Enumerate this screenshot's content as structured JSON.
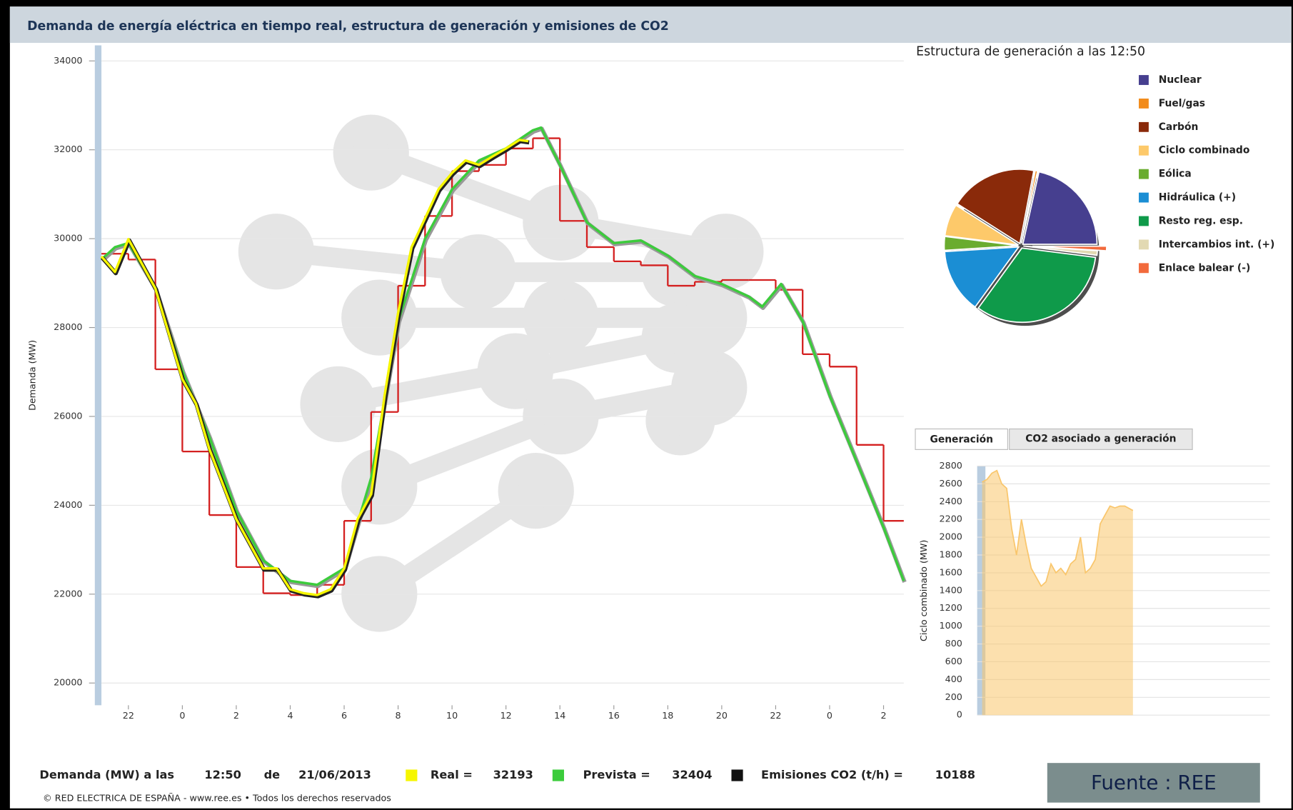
{
  "header": {
    "title": "Demanda de energía eléctrica en tiempo real, estructura de generación y emisiones de CO2"
  },
  "chart_data": [
    {
      "type": "line",
      "ylabel": "Demanda (MW)",
      "xlim": [
        21,
        50.75
      ],
      "ylim": [
        19500,
        34350
      ],
      "yticks": [
        20000,
        22000,
        24000,
        26000,
        28000,
        30000,
        32000,
        34000
      ],
      "xticks": [
        22,
        {
          "value": 24,
          "label": "0"
        },
        {
          "value": 26,
          "label": "2"
        },
        {
          "value": 28,
          "label": "4"
        },
        {
          "value": 30,
          "label": "6"
        },
        {
          "value": 32,
          "label": "8"
        },
        {
          "value": 34,
          "label": "10"
        },
        {
          "value": 36,
          "label": "12"
        },
        {
          "value": 38,
          "label": "14"
        },
        {
          "value": 40,
          "label": "16"
        },
        {
          "value": 42,
          "label": "18"
        },
        {
          "value": 44,
          "label": "20"
        },
        {
          "value": 46,
          "label": "22"
        },
        {
          "value": 48,
          "label": "0"
        },
        {
          "value": 50,
          "label": "2"
        }
      ],
      "series": [
        {
          "name": "Real =",
          "color": "#f6f600",
          "x": [
            21,
            21.5,
            22,
            23,
            24,
            24.5,
            25,
            26,
            27,
            27.5,
            28,
            28.5,
            29,
            29.5,
            30,
            30.5,
            31,
            31.5,
            32,
            32.5,
            33,
            33.5,
            34,
            34.5,
            35,
            35.5,
            36,
            36.5,
            36.83
          ],
          "values": [
            29600,
            29250,
            29990,
            28880,
            26840,
            26290,
            25270,
            23690,
            22580,
            22580,
            22110,
            22020,
            21980,
            22110,
            22580,
            23690,
            24250,
            26470,
            28330,
            29810,
            30460,
            31110,
            31480,
            31760,
            31660,
            31850,
            32030,
            32220,
            32193
          ]
        },
        {
          "name": "Prevista =",
          "color": "#3ccc3c",
          "x": [
            21,
            21.5,
            22,
            23,
            24,
            25,
            26,
            27,
            28,
            29,
            30,
            31,
            32,
            33,
            34,
            35,
            36,
            37,
            37.3,
            38,
            39,
            40,
            41,
            42,
            43,
            44,
            45,
            45.5,
            46.2,
            47,
            48,
            49,
            50,
            50.75
          ],
          "values": [
            29530,
            29810,
            29900,
            28880,
            27030,
            25540,
            23880,
            22760,
            22300,
            22210,
            22580,
            24620,
            28140,
            30000,
            31110,
            31760,
            32030,
            32440,
            32500,
            31660,
            30370,
            29900,
            29960,
            29620,
            29160,
            28980,
            28700,
            28470,
            28980,
            28140,
            26470,
            24990,
            23500,
            22300
          ]
        },
        {
          "color": "#d42020",
          "step": true,
          "x": [
            21,
            22,
            23,
            24,
            25,
            26,
            27,
            28,
            29,
            30,
            31,
            32,
            33,
            34,
            35,
            36,
            37,
            38,
            39,
            40,
            41,
            42,
            43,
            44,
            45,
            46,
            47,
            48,
            49,
            50
          ],
          "values": [
            29660,
            29530,
            27060,
            25210,
            23780,
            22610,
            22020,
            21980,
            22210,
            23650,
            26100,
            28940,
            30510,
            31520,
            31660,
            32030,
            32260,
            30400,
            29810,
            29490,
            29400,
            28940,
            29030,
            29070,
            29070,
            28850,
            27400,
            27120,
            25360,
            23650
          ]
        }
      ]
    },
    {
      "type": "pie",
      "title": "Estructura de generación a las 12:50",
      "categories": [
        "Nuclear",
        "Fuel/gas",
        "Carbón",
        "Ciclo combinado",
        "Eólica",
        "Hidráulica (+)",
        "Resto reg. esp.",
        "Intercambios int. (+)",
        "Enlace balear (-)"
      ],
      "colors": [
        "#463f8f",
        "#f28c1c",
        "#8a2a0a",
        "#fdc96a",
        "#6aac2f",
        "#1b8ed4",
        "#0f9a4a",
        "#e2d9b2",
        "#f26a3c"
      ],
      "values": [
        21.5,
        0.5,
        19,
        7,
        3,
        14,
        33,
        1,
        1
      ]
    },
    {
      "type": "area",
      "tabs": [
        "Generación",
        "CO2 asociado a generación"
      ],
      "ylabel": "Ciclo combinado (MW)",
      "xlim": [
        21,
        50.75
      ],
      "ylim": [
        0,
        2800
      ],
      "yticks": [
        0,
        200,
        400,
        600,
        800,
        1000,
        1200,
        1400,
        1600,
        1800,
        2000,
        2200,
        2400,
        2600,
        2800
      ],
      "series": [
        {
          "color": "#f9c66c",
          "x": [
            21.5,
            22,
            22.5,
            23,
            23.5,
            24,
            24.5,
            25,
            25.5,
            26,
            26.5,
            27,
            27.5,
            28,
            28.5,
            29,
            29.5,
            30,
            30.5,
            31,
            31.5,
            32,
            32.5,
            33,
            33.5,
            34,
            34.5,
            35,
            35.5,
            36,
            36.5,
            36.83
          ],
          "values": [
            2620,
            2650,
            2720,
            2750,
            2600,
            2550,
            2100,
            1800,
            2200,
            1900,
            1650,
            1550,
            1450,
            1500,
            1700,
            1600,
            1650,
            1580,
            1700,
            1750,
            2000,
            1600,
            1650,
            1750,
            2150,
            2250,
            2350,
            2330,
            2350,
            2350,
            2320,
            2300
          ]
        }
      ]
    }
  ],
  "footer": {
    "label": "Demanda (MW) a las",
    "time": "12:50",
    "de": "de",
    "date": "21/06/2013",
    "real": 32193,
    "prevista": 32404,
    "co2_label": "Emisiones CO2 (t/h) =",
    "co2": 10188,
    "co2_color": "#111111",
    "copyright": "© RED ELECTRICA DE ESPAÑA - www.ree.es • Todos los derechos reservados",
    "source": "Fuente : REE"
  }
}
